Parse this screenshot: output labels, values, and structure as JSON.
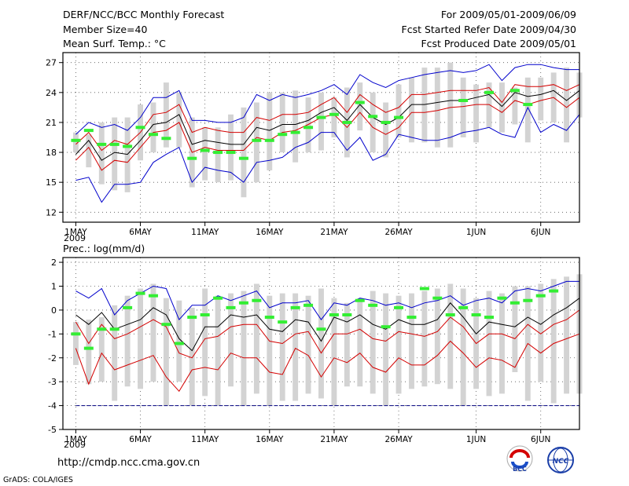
{
  "header": {
    "title": "DERF/NCC/BCC Monthly Forecast",
    "member_size": "Member Size=40",
    "period": "For 2009/05/01-2009/06/09",
    "refer_date": "Fcst Started Refer Date 2009/04/30",
    "produced_date": "Fcst Produced Date 2009/05/01"
  },
  "footer": {
    "url": "http://cmdp.ncc.cma.gov.cn",
    "credit": "GrADS: COLA/IGES",
    "logo_bcc": "BCC",
    "logo_ncc": "NCC"
  },
  "colors": {
    "envelope": "#0000cc",
    "inner_band": "#d40000",
    "mean": "#000000",
    "bar": "#d3d3d3",
    "obs_marker": "#33ee33",
    "floor_line": "#000080"
  },
  "chart_data": [
    {
      "type": "line",
      "title": "Mean Surf. Temp.: °C",
      "xlabel": "",
      "ylabel": "",
      "x_tick_labels": [
        "1MAY",
        "6MAY",
        "11MAY",
        "16MAY",
        "21MAY",
        "26MAY",
        "1JUN",
        "6JUN"
      ],
      "x_tick_days": [
        1,
        6,
        11,
        16,
        21,
        26,
        32,
        37
      ],
      "year_label": "2009",
      "xlim": [
        0,
        40
      ],
      "ylim": [
        11,
        28
      ],
      "y_ticks": [
        12,
        15,
        18,
        21,
        24,
        27
      ],
      "grid": "dotted",
      "days": [
        1,
        2,
        3,
        4,
        5,
        6,
        7,
        8,
        9,
        10,
        11,
        12,
        13,
        14,
        15,
        16,
        17,
        18,
        19,
        20,
        21,
        22,
        23,
        24,
        25,
        26,
        27,
        28,
        29,
        30,
        31,
        32,
        33,
        34,
        35,
        36,
        37,
        38,
        39,
        40
      ],
      "series": [
        {
          "name": "max",
          "values": [
            19.8,
            21.0,
            20.5,
            20.8,
            20.2,
            21.5,
            23.5,
            23.5,
            24.2,
            21.2,
            21.2,
            21.0,
            21.0,
            21.5,
            23.8,
            23.2,
            23.8,
            23.5,
            23.8,
            24.2,
            24.8,
            23.8,
            25.8,
            25.0,
            24.5,
            25.2,
            25.5,
            25.8,
            26.0,
            26.2,
            26.0,
            26.2,
            26.8,
            25.2,
            26.5,
            26.8,
            26.8,
            26.5,
            26.3,
            26.3
          ]
        },
        {
          "name": "upper",
          "values": [
            18.8,
            20.0,
            18.2,
            19.2,
            18.8,
            20.0,
            21.8,
            22.0,
            22.8,
            20.0,
            20.5,
            20.2,
            20.0,
            20.0,
            21.5,
            21.2,
            21.8,
            21.8,
            22.0,
            22.8,
            23.5,
            22.0,
            23.8,
            22.8,
            22.0,
            22.5,
            23.8,
            23.8,
            24.0,
            24.2,
            24.2,
            24.2,
            24.5,
            23.0,
            24.8,
            24.6,
            24.6,
            24.8,
            24.2,
            24.8
          ]
        },
        {
          "name": "mean",
          "values": [
            17.8,
            19.2,
            17.2,
            18.0,
            17.8,
            19.2,
            20.8,
            21.0,
            21.8,
            18.8,
            19.2,
            19.0,
            18.8,
            18.8,
            20.5,
            20.2,
            20.8,
            20.8,
            21.2,
            22.0,
            22.5,
            21.2,
            22.8,
            21.5,
            20.8,
            21.5,
            22.8,
            22.8,
            23.0,
            23.2,
            23.2,
            23.5,
            23.8,
            22.6,
            24.0,
            23.6,
            23.8,
            24.2,
            23.2,
            24.2
          ]
        },
        {
          "name": "lower",
          "values": [
            17.2,
            18.5,
            16.2,
            17.2,
            17.0,
            18.5,
            20.0,
            20.2,
            21.0,
            18.0,
            18.5,
            18.2,
            18.2,
            18.2,
            19.5,
            19.2,
            20.0,
            20.2,
            20.8,
            21.5,
            21.8,
            20.5,
            22.0,
            20.5,
            19.8,
            20.5,
            22.0,
            22.0,
            22.2,
            22.5,
            22.6,
            22.8,
            22.8,
            22.0,
            23.2,
            22.8,
            23.2,
            23.5,
            22.5,
            23.5
          ]
        },
        {
          "name": "min",
          "values": [
            15.2,
            15.5,
            13.0,
            14.8,
            14.8,
            15.0,
            17.0,
            17.8,
            18.5,
            15.0,
            16.5,
            16.2,
            16.0,
            15.0,
            17.0,
            17.2,
            17.5,
            18.5,
            19.0,
            20.0,
            20.0,
            18.2,
            19.5,
            17.2,
            17.8,
            19.8,
            19.5,
            19.2,
            19.2,
            19.5,
            20.0,
            20.2,
            20.5,
            19.8,
            19.5,
            22.5,
            20.0,
            20.8,
            20.2,
            21.8
          ]
        },
        {
          "name": "observed",
          "values": [
            19.2,
            20.2,
            18.8,
            18.8,
            18.6,
            20.5,
            19.8,
            19.4,
            null,
            17.4,
            18.2,
            18.0,
            18.0,
            17.4,
            19.2,
            19.2,
            19.8,
            20.0,
            20.5,
            21.5,
            21.8,
            21.0,
            23.0,
            21.6,
            21.0,
            21.5,
            null,
            null,
            null,
            null,
            23.2,
            null,
            24.0,
            null,
            24.2,
            22.8,
            null,
            null,
            null,
            null
          ]
        }
      ],
      "bars": {
        "low": [
          18.0,
          16.5,
          14.8,
          14.2,
          14.0,
          17.2,
          18.0,
          18.5,
          18.5,
          14.5,
          15.2,
          15.0,
          15.2,
          13.5,
          15.0,
          16.2,
          18.0,
          17.0,
          18.0,
          18.2,
          19.5,
          17.5,
          20.2,
          18.0,
          17.5,
          19.5,
          19.0,
          19.0,
          18.5,
          18.5,
          19.5,
          19.0,
          20.5,
          20.0,
          20.8,
          19.0,
          21.2,
          21.0,
          19.0,
          21.5
        ],
        "high": [
          20.0,
          19.8,
          21.0,
          21.5,
          21.5,
          22.8,
          23.0,
          25.0,
          24.0,
          21.5,
          20.5,
          20.5,
          21.8,
          22.5,
          23.0,
          24.0,
          24.0,
          24.2,
          23.5,
          24.0,
          23.5,
          24.5,
          25.0,
          24.0,
          23.0,
          24.8,
          25.5,
          26.5,
          26.5,
          27.0,
          25.5,
          24.8,
          25.0,
          25.0,
          24.5,
          25.5,
          25.5,
          26.0,
          26.5,
          26.0
        ]
      }
    },
    {
      "type": "line",
      "title": "Prec.: log(mm/d)",
      "xlabel": "",
      "ylabel": "",
      "x_tick_labels": [
        "1MAY",
        "6MAY",
        "11MAY",
        "16MAY",
        "21MAY",
        "26MAY",
        "1JUN",
        "6JUN"
      ],
      "x_tick_days": [
        1,
        6,
        11,
        16,
        21,
        26,
        32,
        37
      ],
      "year_label": "2009",
      "xlim": [
        0,
        40
      ],
      "ylim": [
        -5,
        2.2
      ],
      "y_ticks": [
        2,
        1,
        0,
        -1,
        -2,
        -3,
        -4,
        -5
      ],
      "grid": "dotted",
      "days": [
        1,
        2,
        3,
        4,
        5,
        6,
        7,
        8,
        9,
        10,
        11,
        12,
        13,
        14,
        15,
        16,
        17,
        18,
        19,
        20,
        21,
        22,
        23,
        24,
        25,
        26,
        27,
        28,
        29,
        30,
        31,
        32,
        33,
        34,
        35,
        36,
        37,
        38,
        39,
        40
      ],
      "series": [
        {
          "name": "max",
          "values": [
            0.8,
            0.5,
            0.9,
            -0.2,
            0.4,
            0.7,
            1.0,
            0.9,
            -0.4,
            0.2,
            0.2,
            0.6,
            0.4,
            0.6,
            0.8,
            0.1,
            0.3,
            0.3,
            0.4,
            -0.4,
            0.3,
            0.2,
            0.5,
            0.4,
            0.2,
            0.3,
            0.1,
            0.3,
            0.4,
            0.6,
            0.2,
            0.4,
            0.5,
            0.3,
            0.8,
            0.9,
            0.8,
            1.0,
            1.2,
            1.2
          ]
        },
        {
          "name": "mean",
          "values": [
            -0.2,
            -0.6,
            -0.1,
            -0.8,
            -0.6,
            -0.4,
            0.1,
            -0.2,
            -1.2,
            -1.7,
            -0.7,
            -0.7,
            -0.2,
            -0.3,
            -0.2,
            -0.8,
            -0.9,
            -0.4,
            -0.5,
            -1.3,
            -0.3,
            -0.5,
            -0.2,
            -0.6,
            -0.8,
            -0.4,
            -0.6,
            -0.6,
            -0.4,
            0.3,
            -0.3,
            -1.0,
            -0.5,
            -0.6,
            -0.7,
            -0.3,
            -0.6,
            -0.2,
            0.1,
            0.5
          ]
        },
        {
          "name": "upper",
          "values": [
            -0.5,
            -1.4,
            -0.6,
            -1.2,
            -1.0,
            -0.7,
            -0.4,
            -0.7,
            -1.8,
            -2.0,
            -1.2,
            -1.1,
            -0.7,
            -0.6,
            -0.6,
            -1.3,
            -1.4,
            -1.0,
            -0.9,
            -1.8,
            -1.0,
            -1.0,
            -0.8,
            -1.2,
            -1.3,
            -0.9,
            -1.0,
            -1.1,
            -0.9,
            -0.3,
            -0.7,
            -1.4,
            -1.0,
            -1.0,
            -1.2,
            -0.6,
            -1.0,
            -0.6,
            -0.4,
            0.0
          ]
        },
        {
          "name": "lower",
          "values": [
            -1.6,
            -3.1,
            -1.8,
            -2.5,
            -2.3,
            -2.1,
            -1.9,
            -2.8,
            -3.4,
            -2.5,
            -2.4,
            -2.5,
            -1.8,
            -2.0,
            -2.0,
            -2.6,
            -2.7,
            -1.6,
            -1.9,
            -2.8,
            -2.0,
            -2.2,
            -1.8,
            -2.4,
            -2.6,
            -2.0,
            -2.3,
            -2.3,
            -1.9,
            -1.3,
            -1.8,
            -2.4,
            -2.0,
            -2.1,
            -2.4,
            -1.4,
            -1.8,
            -1.4,
            -1.2,
            -1.0
          ]
        },
        {
          "name": "floor",
          "values": [
            -4,
            -4,
            -4,
            -4,
            -4,
            -4,
            -4,
            -4,
            -4,
            -4,
            -4,
            -4,
            -4,
            -4,
            -4,
            -4,
            -4,
            -4,
            -4,
            -4,
            -4,
            -4,
            -4,
            -4,
            -4,
            -4,
            -4,
            -4,
            -4,
            -4,
            -4,
            -4,
            -4,
            -4,
            -4,
            -4,
            -4,
            -4,
            -4,
            -4
          ]
        },
        {
          "name": "observed",
          "values": [
            -1.0,
            -1.6,
            -0.8,
            -0.8,
            0.1,
            0.7,
            0.6,
            -0.6,
            -1.4,
            -0.3,
            -0.2,
            0.5,
            0.1,
            0.3,
            0.4,
            -0.3,
            -0.5,
            0.1,
            0.2,
            -0.8,
            -0.2,
            -0.2,
            0.4,
            0.2,
            -0.7,
            0.1,
            -0.3,
            0.9,
            0.5,
            -0.2,
            0.1,
            -0.2,
            -0.3,
            0.5,
            0.3,
            0.4,
            0.6,
            0.8,
            null,
            null
          ]
        }
      ],
      "bars": {
        "low": [
          -2.3,
          -3.1,
          -3.0,
          -3.8,
          -3.2,
          -3.3,
          -3.0,
          -4.0,
          -3.0,
          -4.0,
          -3.6,
          -4.0,
          -3.2,
          -4.0,
          -3.5,
          -4.0,
          -3.8,
          -3.8,
          -3.5,
          -3.7,
          -4.0,
          -3.2,
          -3.2,
          -3.5,
          -4.0,
          -3.5,
          -3.3,
          -3.2,
          -3.1,
          -3.3,
          -4.0,
          -3.3,
          -3.6,
          -3.5,
          -2.6,
          -3.8,
          -3.0,
          -3.9,
          -3.5,
          -3.5
        ],
        "high": [
          -0.5,
          -0.4,
          -0.3,
          0.2,
          0.6,
          0.9,
          1.1,
          0.5,
          0.4,
          0.1,
          0.9,
          0.6,
          0.7,
          0.8,
          1.1,
          0.6,
          0.7,
          0.7,
          0.6,
          0.9,
          0.5,
          0.3,
          0.5,
          0.8,
          0.7,
          0.6,
          0.7,
          0.8,
          0.9,
          1.1,
          0.9,
          0.5,
          0.8,
          0.7,
          1.0,
          1.0,
          1.1,
          1.3,
          1.4,
          1.5
        ]
      }
    }
  ]
}
